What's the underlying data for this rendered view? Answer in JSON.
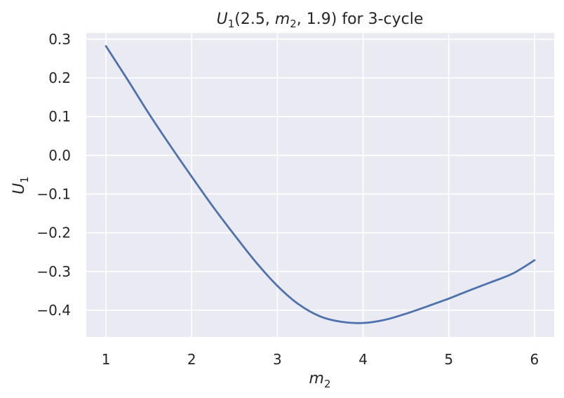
{
  "chart_data": {
    "type": "line",
    "title": {
      "U": "U",
      "U_sub": "1",
      "part1": "(2.5, ",
      "m": "m",
      "m_sub": "2",
      "part2": ", 1.9) for 3-cycle"
    },
    "xlabel": {
      "base": "m",
      "sub": "2"
    },
    "ylabel": {
      "base": "U",
      "sub": "1"
    },
    "xlim": [
      0.77,
      6.23
    ],
    "ylim": [
      -0.469,
      0.316
    ],
    "xticks": [
      1,
      2,
      3,
      4,
      5,
      6
    ],
    "xtick_labels": [
      "1",
      "2",
      "3",
      "4",
      "5",
      "6"
    ],
    "yticks": [
      0.3,
      0.2,
      0.1,
      0.0,
      -0.1,
      -0.2,
      -0.3,
      -0.4
    ],
    "ytick_labels": [
      "0.3",
      "0.2",
      "0.1",
      "0.0",
      "−0.1",
      "−0.2",
      "−0.3",
      "−0.4"
    ],
    "grid": true,
    "colors": {
      "background": "#eaeaf2",
      "grid": "#ffffff",
      "line": "#4c72b0",
      "text": "#262626"
    },
    "series": [
      {
        "x": [
          1.0,
          1.25,
          1.5,
          1.75,
          2.0,
          2.25,
          2.5,
          2.75,
          3.0,
          3.25,
          3.5,
          3.75,
          4.0,
          4.25,
          4.5,
          4.75,
          5.0,
          5.25,
          5.5,
          5.75,
          6.0
        ],
        "y": [
          0.282,
          0.196,
          0.108,
          0.025,
          -0.055,
          -0.133,
          -0.206,
          -0.276,
          -0.337,
          -0.385,
          -0.416,
          -0.43,
          -0.433,
          -0.425,
          -0.409,
          -0.39,
          -0.37,
          -0.348,
          -0.327,
          -0.305,
          -0.271
        ]
      }
    ]
  }
}
